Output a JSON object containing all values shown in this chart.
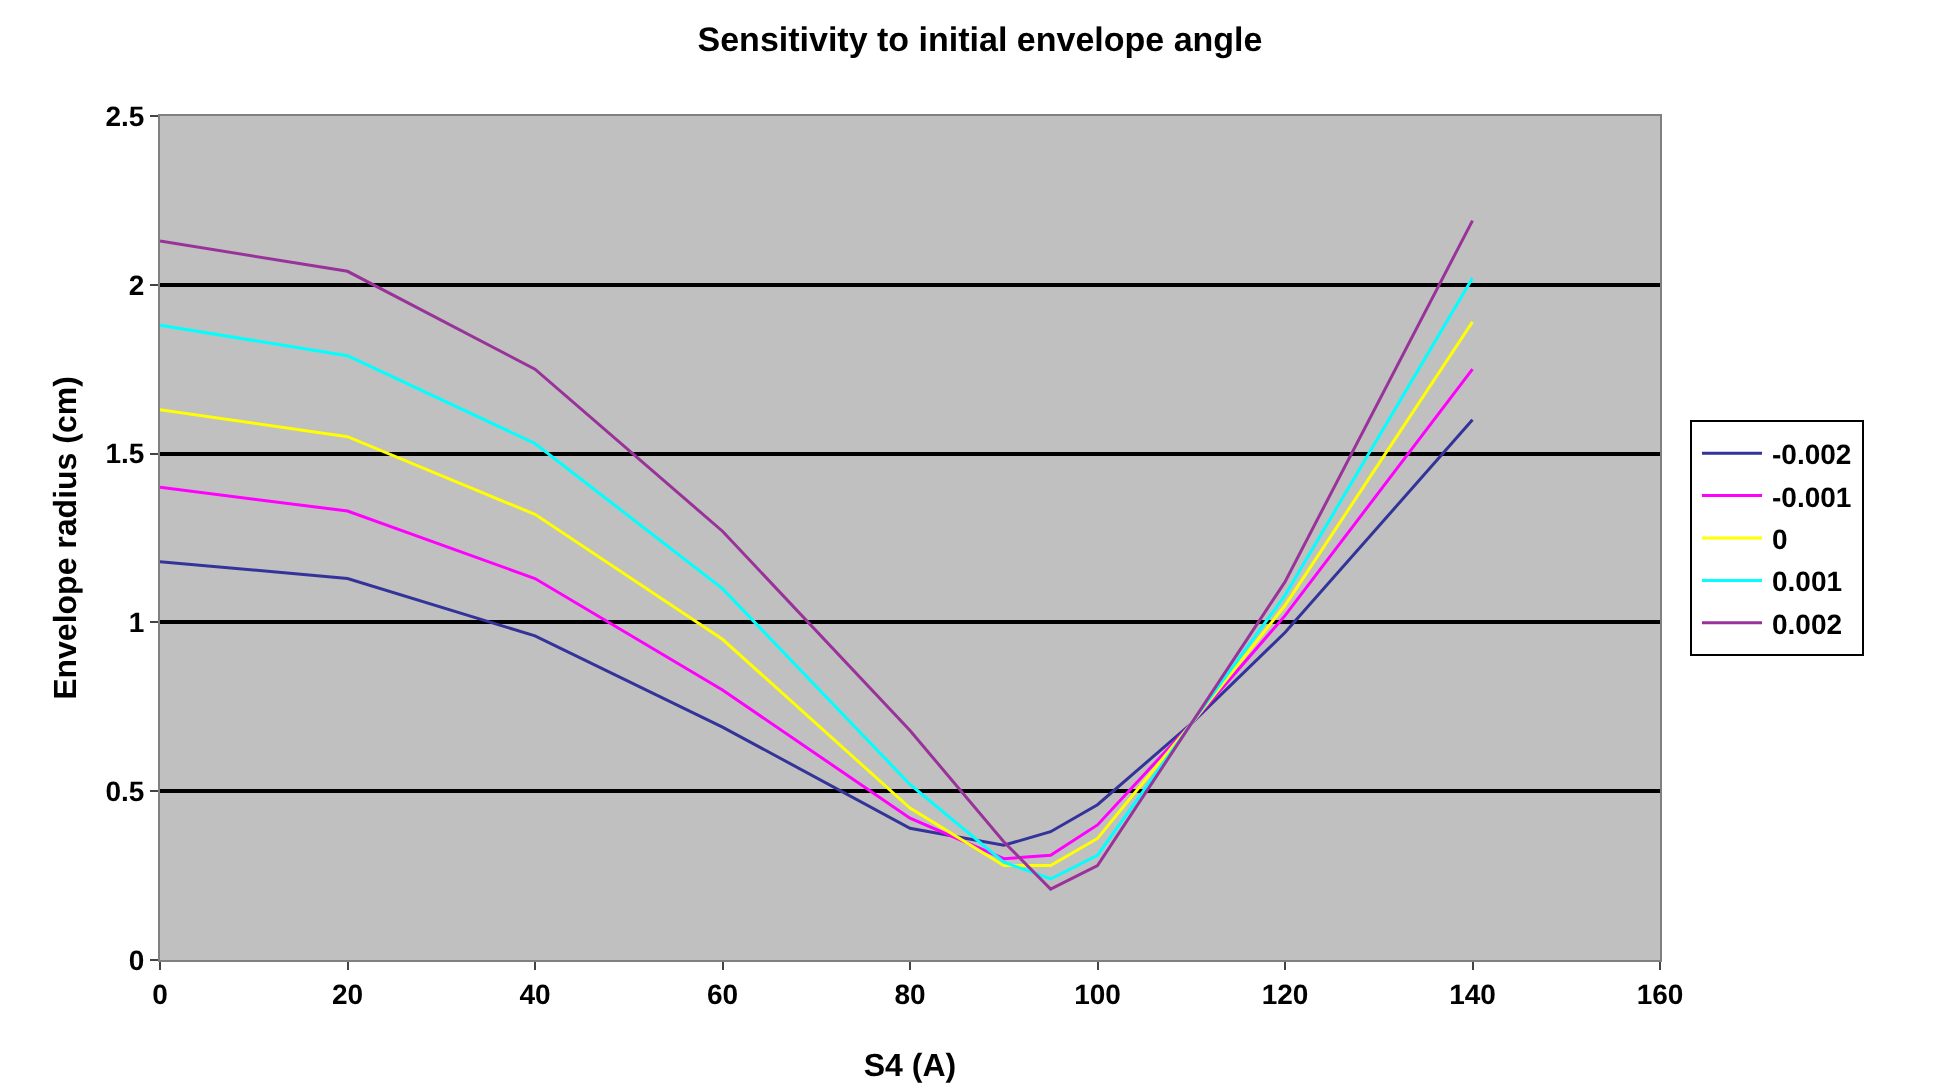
{
  "chart_data": {
    "type": "line",
    "title": "Sensitivity to initial envelope angle",
    "xlabel": "S4 (A)",
    "ylabel": "Envelope radius (cm)",
    "x": [
      0,
      20,
      40,
      60,
      80,
      90,
      95,
      100,
      110,
      120,
      140
    ],
    "series": [
      {
        "name": "-0.002",
        "color": "#333399",
        "values": [
          1.18,
          1.13,
          0.96,
          0.69,
          0.39,
          0.34,
          0.38,
          0.46,
          0.7,
          0.97,
          1.6
        ]
      },
      {
        "name": "-0.001",
        "color": "#ff00ff",
        "values": [
          1.4,
          1.33,
          1.13,
          0.8,
          0.42,
          0.3,
          0.31,
          0.4,
          0.7,
          1.02,
          1.75
        ]
      },
      {
        "name": "0",
        "color": "#ffff00",
        "values": [
          1.63,
          1.55,
          1.32,
          0.95,
          0.45,
          0.28,
          0.28,
          0.36,
          0.7,
          1.05,
          1.89
        ]
      },
      {
        "name": "0.001",
        "color": "#00ffff",
        "values": [
          1.88,
          1.79,
          1.53,
          1.1,
          0.52,
          0.29,
          0.24,
          0.31,
          0.7,
          1.08,
          2.02
        ]
      },
      {
        "name": "0.002",
        "color": "#993399",
        "values": [
          2.13,
          2.04,
          1.75,
          1.27,
          0.68,
          0.35,
          0.21,
          0.28,
          0.7,
          1.12,
          2.19
        ]
      }
    ],
    "xlim": [
      0,
      160
    ],
    "xticks": [
      0,
      20,
      40,
      60,
      80,
      100,
      120,
      140,
      160
    ],
    "ylim": [
      0,
      2.5
    ],
    "yticks": [
      0,
      0.5,
      1,
      1.5,
      2,
      2.5
    ],
    "grid": "y",
    "legend": "right",
    "marker": "none",
    "line_style": "solid"
  }
}
